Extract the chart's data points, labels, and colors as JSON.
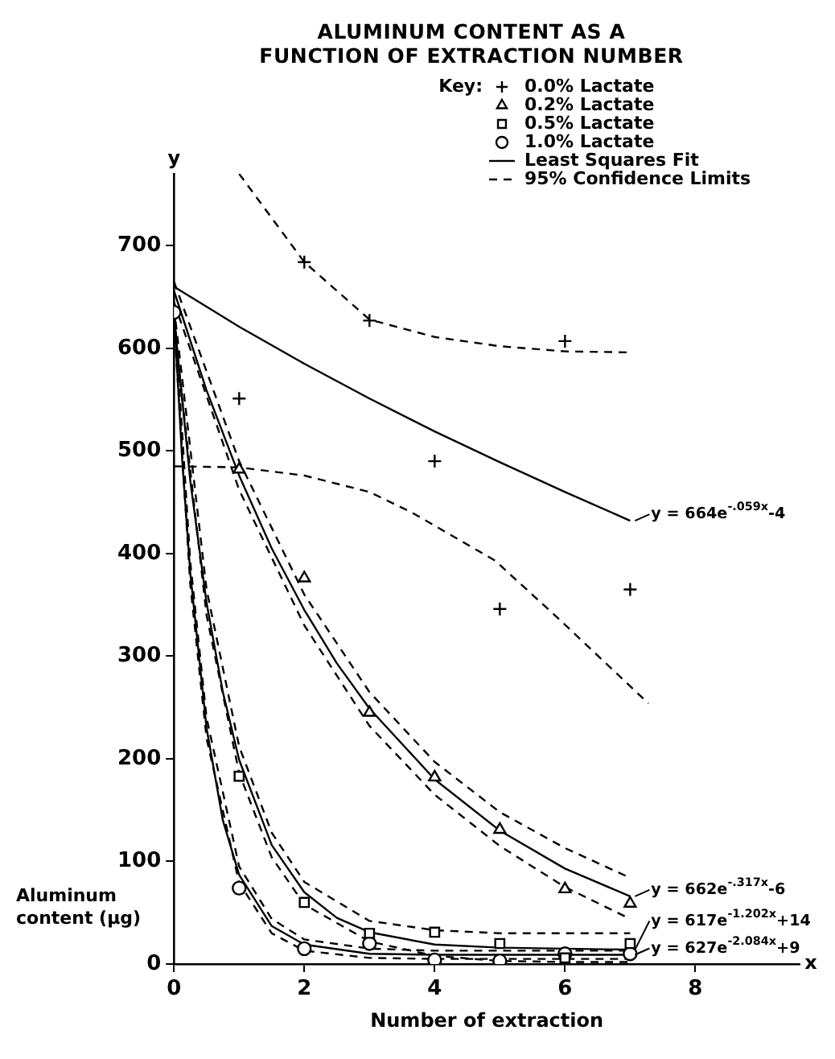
{
  "chart_data": {
    "type": "scatter",
    "title": "ALUMINUM CONTENT AS A FUNCTION OF EXTRACTION NUMBER",
    "xlabel": "Number of extraction",
    "ylabel": "Aluminum content (μg)",
    "legend_title": "Key:",
    "legend": "top right",
    "grid": false,
    "xlim": [
      0,
      9.6
    ],
    "ylim": [
      0,
      770
    ],
    "xticks": [
      0,
      2,
      4,
      6,
      8
    ],
    "yticks": [
      0,
      100,
      200,
      300,
      400,
      500,
      600,
      700
    ],
    "series": [
      {
        "name": "0.0% Lactate",
        "type": "scatter",
        "marker": "cross",
        "color": "#000000",
        "x": [
          1,
          2,
          3,
          4,
          5,
          6,
          7
        ],
        "values": [
          551,
          684,
          627,
          490,
          346,
          607,
          365
        ]
      },
      {
        "name": "0.2% Lactate",
        "type": "scatter",
        "marker": "triangle",
        "color": "#000000",
        "x": [
          1,
          2,
          3,
          4,
          5,
          6,
          7
        ],
        "values": [
          482,
          376,
          245,
          182,
          131,
          73,
          59
        ]
      },
      {
        "name": "0.5% Lactate",
        "type": "scatter",
        "marker": "square",
        "color": "#000000",
        "x": [
          1,
          2,
          3,
          4,
          5,
          6,
          7
        ],
        "values": [
          183,
          60,
          30,
          31,
          20,
          6,
          20
        ]
      },
      {
        "name": "1.0% Lactate",
        "type": "scatter",
        "marker": "circle",
        "color": "#000000",
        "x": [
          1,
          2,
          3,
          4,
          5,
          6,
          7
        ],
        "values": [
          74,
          15,
          20,
          4,
          3,
          10,
          10
        ]
      },
      {
        "type": "scatter",
        "marker": "circle",
        "color": "#000000",
        "x": [
          0
        ],
        "values": [
          635
        ]
      },
      {
        "name": "Least Squares Fit",
        "type": "line",
        "line_style": "solid",
        "color": "#000000",
        "x": [
          0,
          1,
          2,
          3,
          4,
          5,
          6,
          7
        ],
        "values": [
          660,
          621,
          585,
          551,
          519,
          489,
          460,
          432
        ]
      },
      {
        "type": "line",
        "line_style": "solid",
        "color": "#000000",
        "x": [
          0,
          0.5,
          1,
          1.5,
          2,
          2.5,
          3,
          4,
          5,
          6,
          7
        ],
        "values": [
          656,
          559,
          476,
          405,
          345,
          293,
          249,
          180,
          130,
          93,
          66
        ]
      },
      {
        "type": "line",
        "line_style": "solid",
        "color": "#000000",
        "x": [
          0,
          0.25,
          0.5,
          0.75,
          1,
          1.5,
          2,
          2.5,
          3,
          4,
          5,
          6,
          7
        ],
        "values": [
          631,
          471,
          352,
          265,
          199,
          116,
          70,
          45,
          31,
          19,
          16,
          15,
          14
        ]
      },
      {
        "type": "line",
        "line_style": "solid",
        "color": "#000000",
        "x": [
          0,
          0.125,
          0.25,
          0.5,
          0.75,
          1,
          1.5,
          2,
          3,
          4,
          7
        ],
        "values": [
          636,
          492,
          381,
          230,
          140,
          87,
          37,
          19,
          10,
          9,
          9
        ]
      },
      {
        "name": "95% Confidence Limits",
        "type": "line",
        "line_style": "dashed",
        "color": "#000000",
        "x": [
          1,
          2,
          3,
          4,
          5,
          6,
          7
        ],
        "values": [
          770,
          684,
          628,
          611,
          602,
          597,
          596
        ]
      },
      {
        "type": "line",
        "line_style": "dashed",
        "color": "#000000",
        "x": [
          0,
          1,
          2,
          3,
          3.65,
          4.93,
          5.91,
          7.28
        ],
        "values": [
          485,
          484,
          476,
          460,
          440,
          393,
          336,
          254
        ]
      },
      {
        "type": "line",
        "line_style": "dashed",
        "color": "#000000",
        "x": [
          0,
          1,
          2,
          3,
          4,
          5,
          6,
          7
        ],
        "values": [
          665,
          490,
          360,
          265,
          197,
          148,
          113,
          84
        ]
      },
      {
        "type": "line",
        "line_style": "dashed",
        "color": "#000000",
        "x": [
          0,
          1,
          2,
          3,
          4,
          5,
          6,
          7
        ],
        "values": [
          645,
          462,
          330,
          232,
          165,
          115,
          75,
          44
        ]
      },
      {
        "type": "line",
        "line_style": "dashed",
        "color": "#000000",
        "x": [
          0,
          0.5,
          1,
          1.5,
          2,
          3,
          4,
          5,
          6,
          7
        ],
        "values": [
          640,
          365,
          212,
          128,
          80,
          42,
          33,
          30,
          30,
          30
        ]
      },
      {
        "type": "line",
        "line_style": "dashed",
        "color": "#000000",
        "x": [
          0,
          0.5,
          1,
          1.5,
          2,
          3,
          4,
          5,
          6,
          7
        ],
        "values": [
          622,
          340,
          186,
          104,
          58,
          22,
          8,
          3,
          2,
          2
        ]
      },
      {
        "type": "line",
        "line_style": "dashed",
        "color": "#000000",
        "x": [
          0,
          0.25,
          0.5,
          1,
          1.5,
          2,
          3,
          4,
          7
        ],
        "values": [
          645,
          392,
          240,
          95,
          44,
          24,
          15,
          13,
          13
        ]
      },
      {
        "type": "line",
        "line_style": "dashed",
        "color": "#000000",
        "x": [
          0,
          0.25,
          0.5,
          1,
          1.5,
          2,
          3,
          4,
          7
        ],
        "values": [
          627,
          370,
          220,
          79,
          30,
          13,
          6,
          5,
          5
        ]
      }
    ],
    "annotations": [
      "y = 664e$^{-.059x}$-4",
      "y = 662e$^{-.317x}$-6",
      "y = 617e$^{-1.202x}$+14",
      "y = 627e$^{-2.084x}$+9",
      "y",
      "x"
    ]
  }
}
